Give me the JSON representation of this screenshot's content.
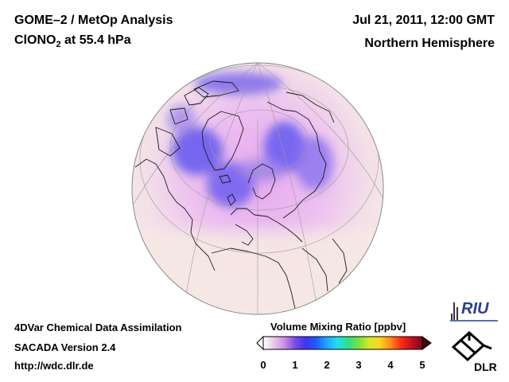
{
  "header": {
    "title_line1": "GOME–2 / MetOp Analysis",
    "species": "ClONO",
    "species_sub": "2",
    "level": " at 55.4 hPa",
    "datetime": "Jul 21, 2011, 12:00 GMT",
    "region": "Northern Hemisphere"
  },
  "footer": {
    "line1": "4DVar Chemical Data Assimilation",
    "line2": "SACADA Version 2.4",
    "line3": "http://wdc.dlr.de"
  },
  "colorbar": {
    "title": "Volume Mixing Ratio [ppbv]",
    "ticks": [
      "0",
      "1",
      "2",
      "3",
      "4",
      "5"
    ],
    "min": 0,
    "max": 5,
    "colors": [
      "#ffffff",
      "#e9c8ef",
      "#c98ee3",
      "#7a4be8",
      "#3a35f0",
      "#1f5cff",
      "#1ea8ff",
      "#22e0e6",
      "#2fe08a",
      "#7be23a",
      "#d8e82a",
      "#ffd21f",
      "#ff8a1a",
      "#ff2a1a",
      "#c40f1f",
      "#7a0a1a"
    ],
    "under_color": "#ffffff",
    "over_color": "#3a0a0a"
  },
  "logos": {
    "riu": "RIU",
    "dlr": "DLR"
  }
}
